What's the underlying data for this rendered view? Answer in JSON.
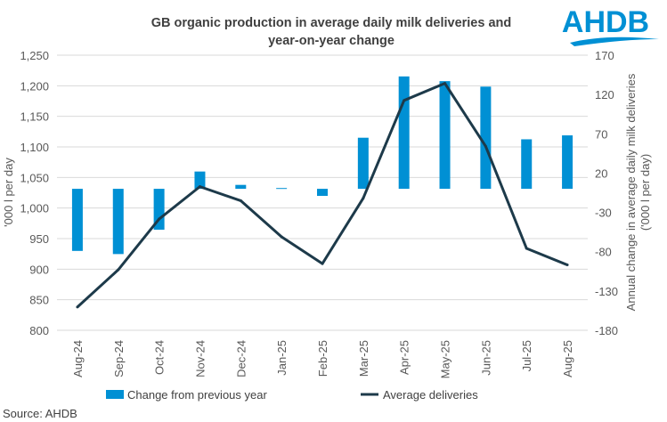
{
  "logo": {
    "text": "AHDB",
    "color": "#0090d4"
  },
  "source": "Source: AHDB",
  "chart_data": {
    "type": "bar+line",
    "title": "GB organic production in average daily milk deliveries and year-on-year change",
    "title_lines": [
      "GB organic production in average daily milk deliveries and",
      "year-on-year change"
    ],
    "categories": [
      "Aug-24",
      "Sep-24",
      "Oct-24",
      "Nov-24",
      "Dec-24",
      "Jan-25",
      "Feb-25",
      "Mar-25",
      "Apr-25",
      "May-25",
      "Jun-25",
      "Jul-25",
      "Aug-25"
    ],
    "series": [
      {
        "name": "Change from previous year",
        "type": "bar",
        "axis": "right",
        "color": "#0090d4",
        "values": [
          -79,
          -83,
          -52,
          22,
          5,
          1,
          -9,
          65,
          143,
          137,
          130,
          63,
          68
        ]
      },
      {
        "name": "Average deliveries",
        "type": "line",
        "axis": "left",
        "color": "#1d3a4a",
        "values": [
          838,
          899,
          982,
          1035,
          1012,
          953,
          909,
          1016,
          1176,
          1204,
          1101,
          934,
          907
        ]
      }
    ],
    "ylabel": "'000 l per day",
    "y2label_lines": [
      "Annual change in average daily milk deliveries",
      "('000 l per day)"
    ],
    "ylim": [
      800,
      1250
    ],
    "yticks": [
      "800",
      "850",
      "900",
      "950",
      "1,000",
      "1,050",
      "1,100",
      "1,150",
      "1,200",
      "1,250"
    ],
    "y2lim": [
      -180,
      170
    ],
    "y2ticks": [
      "-180",
      "-130",
      "-80",
      "-30",
      "20",
      "70",
      "120",
      "170"
    ],
    "grid": true,
    "legend": "bottom"
  }
}
